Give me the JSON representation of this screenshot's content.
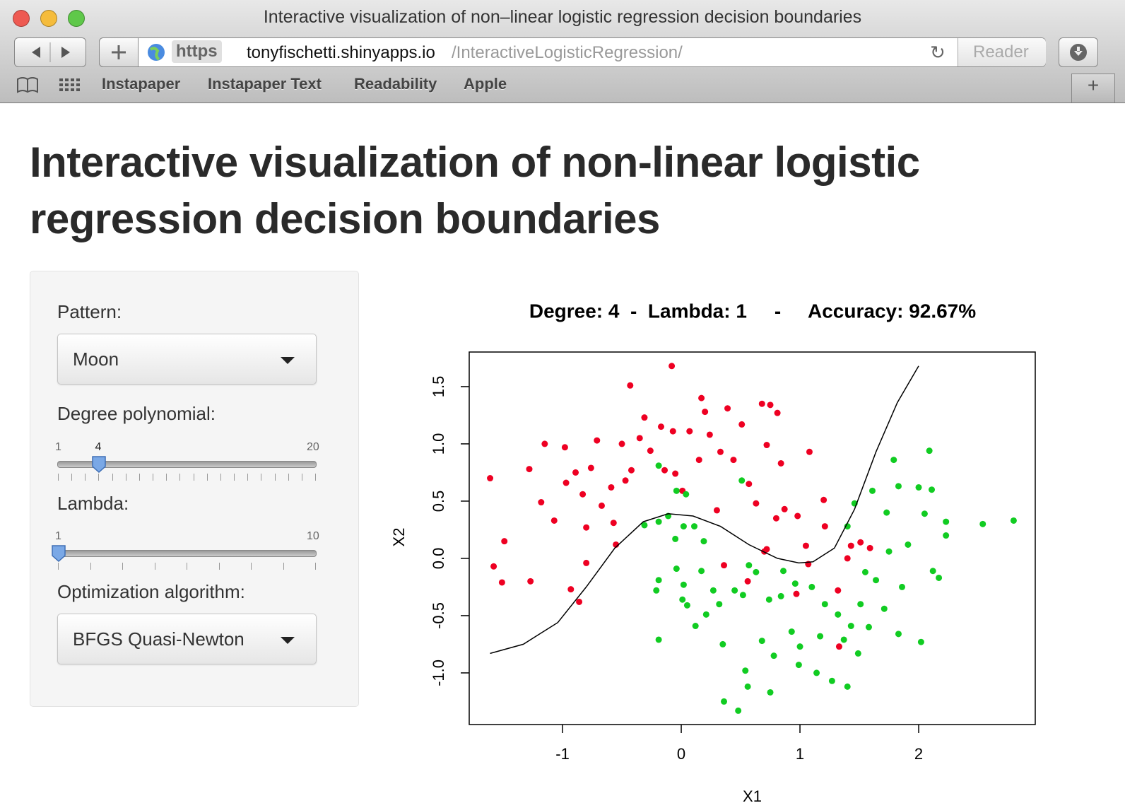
{
  "browser": {
    "window_title": "Interactive visualization of non–linear logistic regression decision boundaries",
    "url_scheme": "https",
    "url_host": "tonyfischetti.shinyapps.io",
    "url_path": "/InteractiveLogisticRegression/",
    "reader": "Reader",
    "bookmarks": [
      "Instapaper",
      "Instapaper Text",
      "Readability",
      "Apple"
    ]
  },
  "page": {
    "title": "Interactive visualization of non-linear logistic regression decision boundaries",
    "controls": {
      "pattern_label": "Pattern:",
      "pattern_value": "Moon",
      "degree_label": "Degree polynomial:",
      "degree_slider": {
        "min": 1,
        "value": 4,
        "max": 20
      },
      "lambda_label": "Lambda:",
      "lambda_slider": {
        "min": 1,
        "value": 1,
        "max": 10
      },
      "algorithm_label": "Optimization algorithm:",
      "algorithm_value": "BFGS Quasi-Newton"
    }
  },
  "chart_data": {
    "type": "scatter",
    "title": "Degree: 4  -  Lambda: 1     -     Accuracy: 92.67%",
    "x_label": "X1",
    "y_label": "X2",
    "xlim": [
      -1.786,
      2.982
    ],
    "ylim": [
      -1.451,
      1.802
    ],
    "xticks": [
      -1,
      0,
      1,
      2
    ],
    "yticks": [
      {
        "value": -1,
        "label": "-1.0"
      },
      -0.5,
      {
        "value": 0,
        "label": "0.0"
      },
      0.5,
      {
        "value": 1,
        "label": "1.0"
      },
      1.5
    ],
    "series": [
      {
        "color": "#ee0022",
        "x": [
          -1.61,
          -1.58,
          -1.51,
          -1.49,
          -1.28,
          -1.27,
          -1.18,
          -1.15,
          -1.07,
          -0.98,
          -0.97,
          -0.93,
          -0.89,
          -0.86,
          -0.83,
          -0.8,
          -0.8,
          -0.76,
          -0.71,
          -0.67,
          -0.59,
          -0.57,
          -0.55,
          -0.5,
          -0.43,
          -0.42,
          -0.35,
          -0.31,
          -0.26,
          -0.17,
          -0.08,
          -0.07,
          -0.05,
          0.01,
          0.07,
          0.17,
          0.2,
          0.24,
          0.3,
          0.39,
          0.44,
          0.51,
          0.57,
          0.68,
          0.75,
          0.81,
          0.72,
          0.84,
          0.63,
          0.7,
          0.8,
          0.87,
          0.98,
          1.05,
          1.08,
          1.2,
          1.21,
          1.32,
          1.33,
          1.4,
          1.43,
          1.51,
          1.59,
          0.36,
          0.56,
          0.72,
          0.97,
          1.07,
          -0.47,
          -0.14,
          0.15,
          0.33
        ],
        "y": [
          0.7,
          -0.07,
          -0.21,
          0.15,
          0.78,
          -0.2,
          0.49,
          1.0,
          0.33,
          0.97,
          0.66,
          -0.27,
          0.75,
          -0.38,
          0.56,
          -0.04,
          0.27,
          0.79,
          1.03,
          0.46,
          0.62,
          0.31,
          0.12,
          1.0,
          1.51,
          0.77,
          1.05,
          1.23,
          0.94,
          1.15,
          1.68,
          1.11,
          0.74,
          0.59,
          1.11,
          1.4,
          1.28,
          1.08,
          0.42,
          1.31,
          0.86,
          1.17,
          0.65,
          1.35,
          1.34,
          1.27,
          0.99,
          0.83,
          0.48,
          0.06,
          0.35,
          0.43,
          0.37,
          0.11,
          0.93,
          0.51,
          0.28,
          -0.28,
          -0.77,
          0.0,
          0.11,
          0.14,
          0.09,
          -0.06,
          -0.2,
          0.08,
          -0.31,
          -0.05,
          0.68,
          0.77,
          0.86,
          0.93
        ]
      },
      {
        "color": "#11cc22",
        "x": [
          -0.19,
          -0.31,
          -0.19,
          -0.11,
          -0.05,
          -0.04,
          0.04,
          0.02,
          0.11,
          0.19,
          -0.19,
          -0.21,
          -0.19,
          -0.04,
          0.01,
          0.02,
          0.05,
          0.12,
          0.17,
          0.21,
          0.27,
          0.35,
          0.36,
          0.48,
          0.54,
          0.56,
          0.45,
          0.51,
          0.52,
          0.57,
          0.63,
          0.68,
          0.74,
          0.75,
          0.78,
          0.86,
          0.93,
          0.96,
          0.99,
          1.0,
          1.14,
          1.17,
          1.21,
          1.27,
          1.4,
          1.37,
          1.43,
          1.4,
          1.46,
          1.49,
          1.51,
          1.55,
          1.61,
          1.64,
          1.71,
          1.73,
          1.79,
          1.83,
          1.83,
          1.86,
          1.91,
          2.0,
          2.02,
          2.05,
          2.09,
          2.11,
          2.12,
          2.17,
          2.23,
          2.23,
          2.54,
          2.8,
          1.75,
          1.58,
          0.32,
          1.1,
          0.84,
          1.32
        ],
        "y": [
          0.81,
          0.29,
          0.32,
          0.37,
          0.17,
          0.59,
          0.56,
          0.28,
          0.28,
          0.15,
          -0.19,
          -0.28,
          -0.71,
          -0.09,
          -0.36,
          -0.23,
          -0.41,
          -0.59,
          -0.11,
          -0.49,
          -0.28,
          -0.75,
          -1.25,
          -1.33,
          -0.98,
          -1.12,
          -0.28,
          0.68,
          -0.32,
          -0.06,
          -0.12,
          -0.72,
          -0.36,
          -1.17,
          -0.85,
          -0.11,
          -0.64,
          -0.22,
          -0.93,
          -0.77,
          -1.0,
          -0.68,
          -0.4,
          -1.07,
          -1.12,
          -0.71,
          -0.59,
          0.28,
          0.48,
          -0.83,
          -0.4,
          -0.12,
          0.59,
          -0.19,
          -0.44,
          0.4,
          0.86,
          0.63,
          -0.66,
          -0.25,
          0.12,
          0.62,
          -0.73,
          0.39,
          0.94,
          0.6,
          -0.11,
          -0.17,
          0.32,
          0.2,
          0.3,
          0.33,
          0.06,
          -0.6,
          -0.4,
          -0.25,
          -0.33,
          -0.49
        ]
      }
    ],
    "boundary": {
      "color": "#000000",
      "x": [
        -1.61,
        -1.33,
        -1.04,
        -0.8,
        -0.56,
        -0.32,
        -0.11,
        0.1,
        0.33,
        0.57,
        0.81,
        0.99,
        1.11,
        1.29,
        1.46,
        1.64,
        1.82,
        2.0
      ],
      "y": [
        -0.83,
        -0.75,
        -0.56,
        -0.25,
        0.09,
        0.32,
        0.39,
        0.37,
        0.28,
        0.12,
        0.0,
        -0.04,
        -0.03,
        0.09,
        0.43,
        0.93,
        1.36,
        1.68
      ]
    }
  }
}
